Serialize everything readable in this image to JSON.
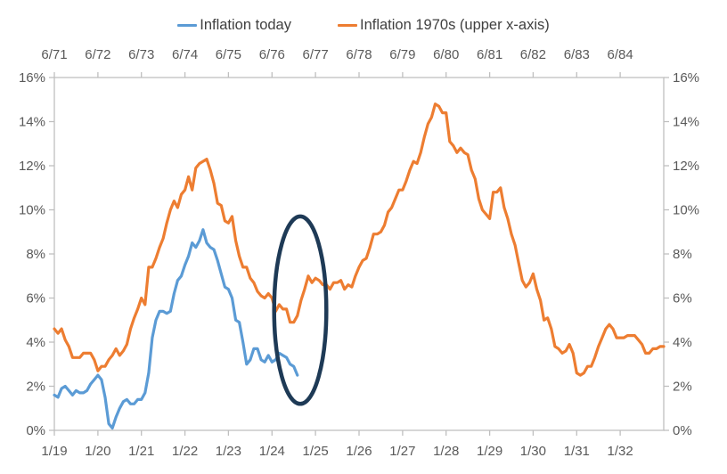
{
  "legend": {
    "items": [
      {
        "label": "Inflation today",
        "color": "#5B9BD5"
      },
      {
        "label": "Inflation 1970s (upper x-axis)",
        "color": "#ED7D31"
      }
    ]
  },
  "chart_data": {
    "type": "line",
    "grid": false,
    "legend_position": "top",
    "y_axis": {
      "min": 0,
      "max": 16,
      "tick_step": 2,
      "tick_values": [
        0,
        2,
        4,
        6,
        8,
        10,
        12,
        14,
        16
      ],
      "tick_labels": [
        "0%",
        "2%",
        "4%",
        "6%",
        "8%",
        "10%",
        "12%",
        "14%",
        "16%"
      ],
      "sides": [
        "left",
        "right"
      ]
    },
    "upper_x_axis": {
      "tick_labels": [
        "6/71",
        "6/72",
        "6/73",
        "6/74",
        "6/75",
        "6/76",
        "6/77",
        "6/78",
        "6/79",
        "6/80",
        "6/81",
        "6/82",
        "6/83",
        "6/84"
      ],
      "series": "Inflation 1970s (upper x-axis)"
    },
    "lower_x_axis": {
      "tick_labels": [
        "1/19",
        "1/20",
        "1/21",
        "1/22",
        "1/23",
        "1/24",
        "1/25",
        "1/26",
        "1/27",
        "1/28",
        "1/29",
        "1/30",
        "1/31",
        "1/32"
      ],
      "series": "Inflation today"
    },
    "series": [
      {
        "name": "Inflation today",
        "color": "#5B9BD5",
        "x_axis": "lower",
        "start_label": "1/19",
        "frequency": "monthly",
        "values": [
          1.6,
          1.5,
          1.9,
          2.0,
          1.8,
          1.6,
          1.8,
          1.7,
          1.7,
          1.8,
          2.1,
          2.3,
          2.5,
          2.3,
          1.5,
          0.3,
          0.1,
          0.6,
          1.0,
          1.3,
          1.4,
          1.2,
          1.2,
          1.4,
          1.4,
          1.7,
          2.6,
          4.2,
          5.0,
          5.4,
          5.4,
          5.3,
          5.4,
          6.2,
          6.8,
          7.0,
          7.5,
          7.9,
          8.5,
          8.3,
          8.6,
          9.1,
          8.5,
          8.3,
          8.2,
          7.7,
          7.1,
          6.5,
          6.4,
          6.0,
          5.0,
          4.9,
          4.0,
          3.0,
          3.2,
          3.7,
          3.7,
          3.2,
          3.1,
          3.4,
          3.1,
          3.2,
          3.5,
          3.4,
          3.3,
          3.0,
          2.9,
          2.5
        ]
      },
      {
        "name": "Inflation 1970s (upper x-axis)",
        "color": "#ED7D31",
        "x_axis": "upper",
        "start_label": "6/71",
        "frequency": "monthly",
        "values": [
          4.6,
          4.4,
          4.6,
          4.1,
          3.8,
          3.3,
          3.3,
          3.3,
          3.5,
          3.5,
          3.5,
          3.2,
          2.7,
          2.9,
          2.9,
          3.2,
          3.4,
          3.7,
          3.4,
          3.6,
          3.9,
          4.6,
          5.1,
          5.5,
          6.0,
          5.7,
          7.4,
          7.4,
          7.8,
          8.3,
          8.7,
          9.4,
          10.0,
          10.4,
          10.1,
          10.7,
          10.9,
          11.5,
          10.9,
          11.9,
          12.1,
          12.2,
          12.3,
          11.8,
          11.2,
          10.3,
          10.2,
          9.5,
          9.4,
          9.7,
          8.6,
          7.9,
          7.4,
          7.4,
          6.9,
          6.7,
          6.3,
          6.1,
          6.0,
          6.2,
          6.0,
          5.4,
          5.7,
          5.5,
          5.5,
          4.9,
          4.9,
          5.2,
          5.9,
          6.4,
          7.0,
          6.7,
          6.9,
          6.8,
          6.6,
          6.6,
          6.4,
          6.7,
          6.7,
          6.8,
          6.4,
          6.6,
          6.5,
          7.0,
          7.4,
          7.7,
          7.8,
          8.3,
          8.9,
          8.9,
          9.0,
          9.3,
          9.9,
          10.1,
          10.5,
          10.9,
          10.9,
          11.3,
          11.8,
          12.2,
          12.1,
          12.6,
          13.3,
          13.9,
          14.2,
          14.8,
          14.7,
          14.4,
          14.4,
          13.1,
          12.9,
          12.6,
          12.8,
          12.6,
          12.5,
          11.8,
          11.4,
          10.5,
          10.0,
          9.8,
          9.6,
          10.8,
          10.8,
          11.0,
          10.1,
          9.6,
          8.9,
          8.4,
          7.6,
          6.8,
          6.5,
          6.7,
          7.1,
          6.4,
          5.9,
          5.0,
          5.1,
          4.6,
          3.8,
          3.7,
          3.5,
          3.6,
          3.9,
          3.5,
          2.6,
          2.5,
          2.6,
          2.9,
          2.9,
          3.3,
          3.8,
          4.2,
          4.6,
          4.8,
          4.6,
          4.2,
          4.2,
          4.2,
          4.3,
          4.3,
          4.3,
          4.1,
          3.9,
          3.5,
          3.5,
          3.7,
          3.7,
          3.8,
          3.8
        ]
      }
    ],
    "annotation_ellipse": {
      "description": "circle highlighting blue-line endpoint vs orange 1976 trough",
      "color": "#1E3A56",
      "center_month_from_axis_start": 67.8,
      "center_value_pct": 5.45,
      "radius_months": 7.2,
      "radius_pct": 4.25
    },
    "style": {
      "axis_color": "#BFBFBF",
      "label_color": "#595959",
      "line_width": 3.2,
      "ellipse_width": 4.5
    }
  }
}
